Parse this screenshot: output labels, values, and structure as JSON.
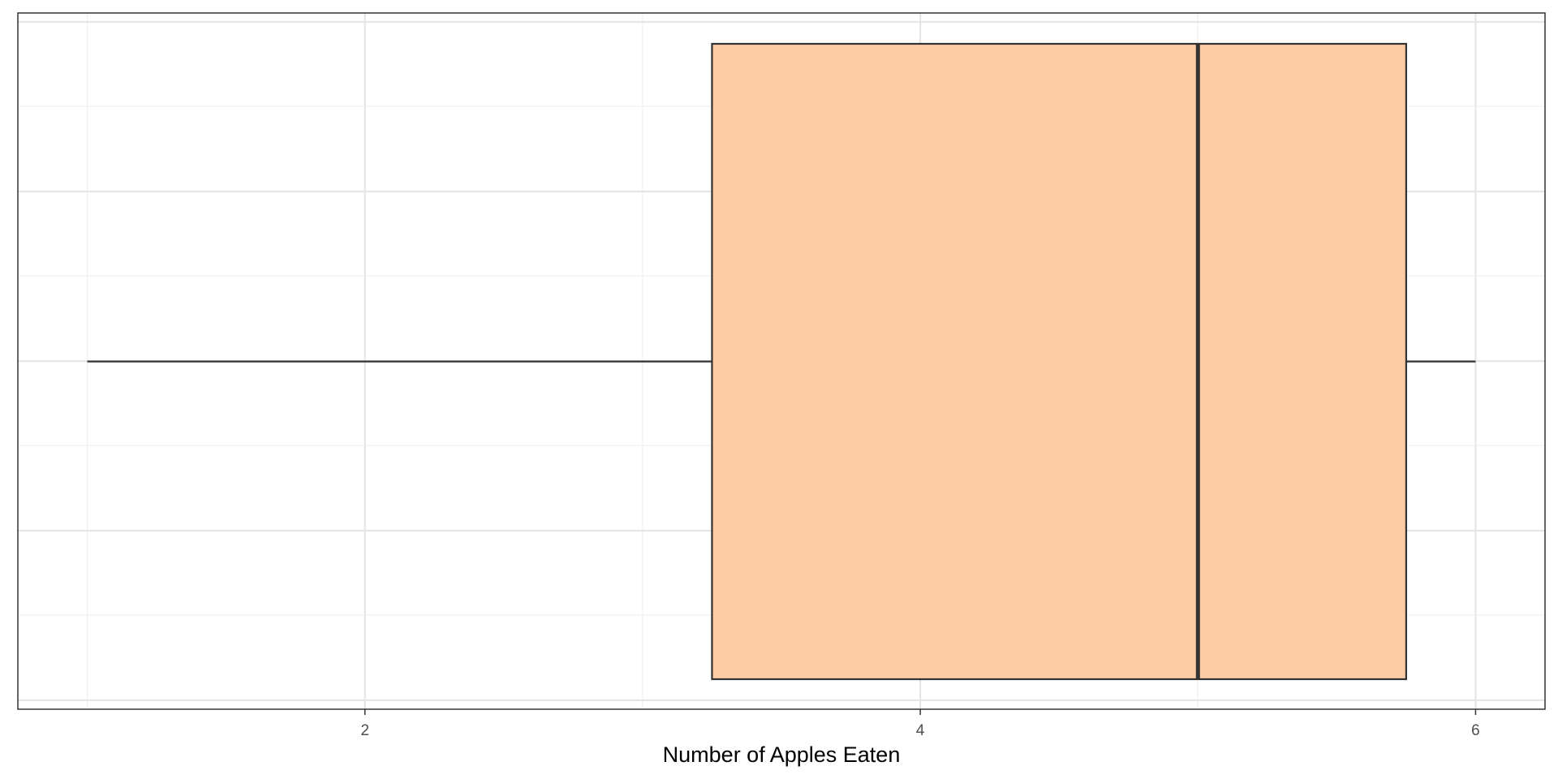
{
  "chart_data": {
    "type": "boxplot",
    "title": "",
    "xlabel": "Number of Apples Eaten",
    "ylabel": "",
    "xlim": [
      0.75,
      6.25
    ],
    "x_ticks": [
      2,
      4,
      6
    ],
    "x_tick_labels": [
      "2",
      "4",
      "6"
    ],
    "orientation": "horizontal",
    "grid": true,
    "legend": "none",
    "box": {
      "min": 1,
      "q1": 3.25,
      "median": 5,
      "q3": 5.75,
      "max": 6
    },
    "colors": {
      "fill": "#fdcca5",
      "stroke": "#333333",
      "grid_major": "#e5e5e5",
      "grid_minor": "#f0f0f0",
      "panel_border": "#333333"
    }
  }
}
